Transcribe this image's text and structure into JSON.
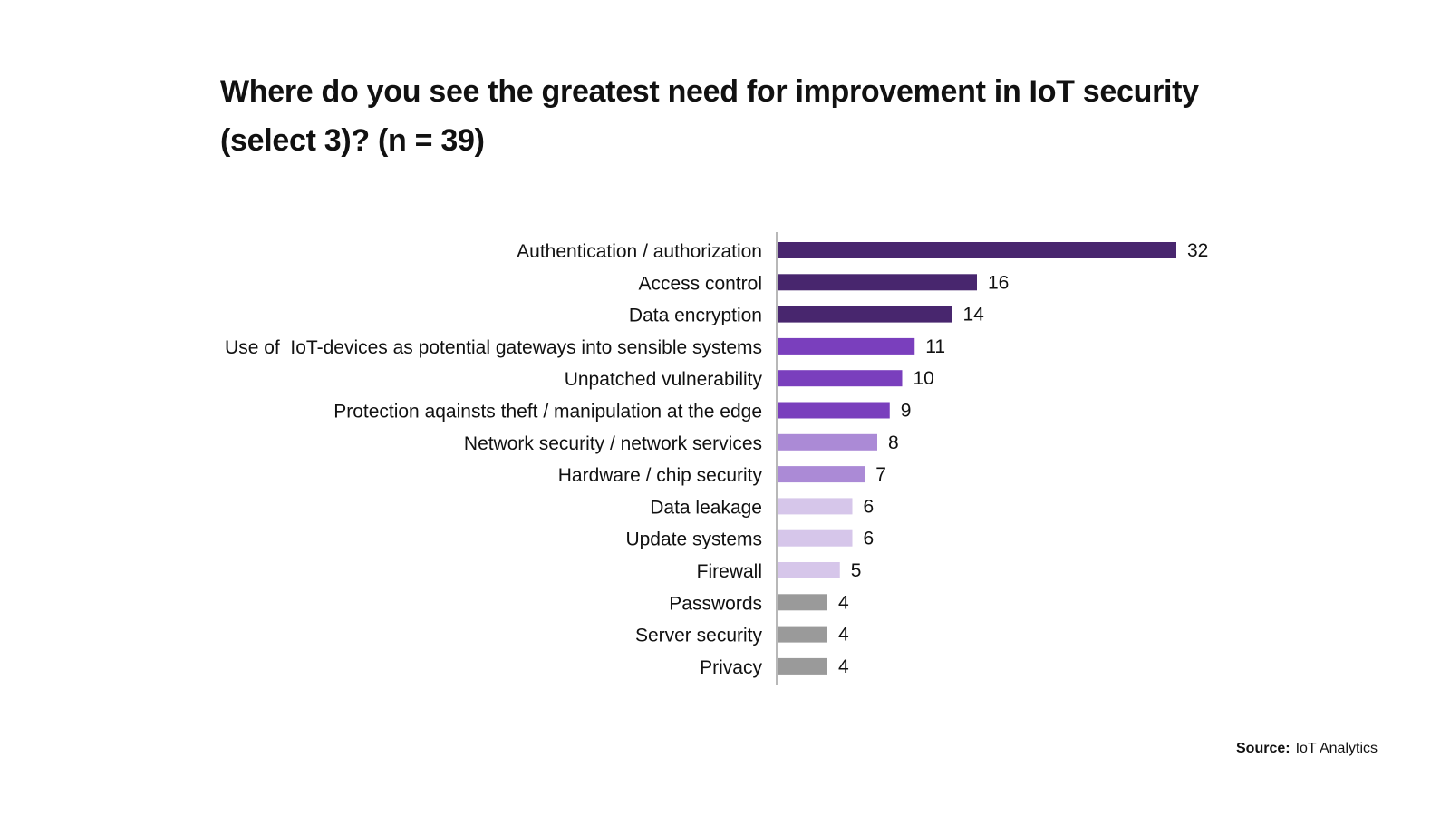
{
  "chart_data": {
    "type": "bar",
    "orientation": "horizontal",
    "title": "Where do you see the greatest need for improvement in IoT security (select 3)? (n = 39)",
    "categories": [
      "Authentication / authorization",
      "Access control",
      "Data encryption",
      "Use of  IoT-devices as potential gateways into sensible systems",
      "Unpatched vulnerability",
      "Protection aqainsts theft / manipulation at the edge",
      "Network security / network services",
      "Hardware / chip security",
      "Data leakage",
      "Update systems",
      "Firewall",
      "Passwords",
      "Server security",
      "Privacy"
    ],
    "values": [
      32,
      16,
      14,
      11,
      10,
      9,
      8,
      7,
      6,
      6,
      5,
      4,
      4,
      4
    ],
    "bar_colors": [
      "#48266e",
      "#48266e",
      "#48266e",
      "#7a3fbd",
      "#7a3fbd",
      "#7a3fbd",
      "#ab8ad6",
      "#ab8ad6",
      "#d6c6ea",
      "#d6c6ea",
      "#d6c6ea",
      "#9a9a9a",
      "#9a9a9a",
      "#9a9a9a"
    ],
    "xlim": [
      0,
      32
    ],
    "grid": false,
    "data_labels": true
  },
  "source": {
    "label": "Source:",
    "value": "IoT Analytics"
  }
}
